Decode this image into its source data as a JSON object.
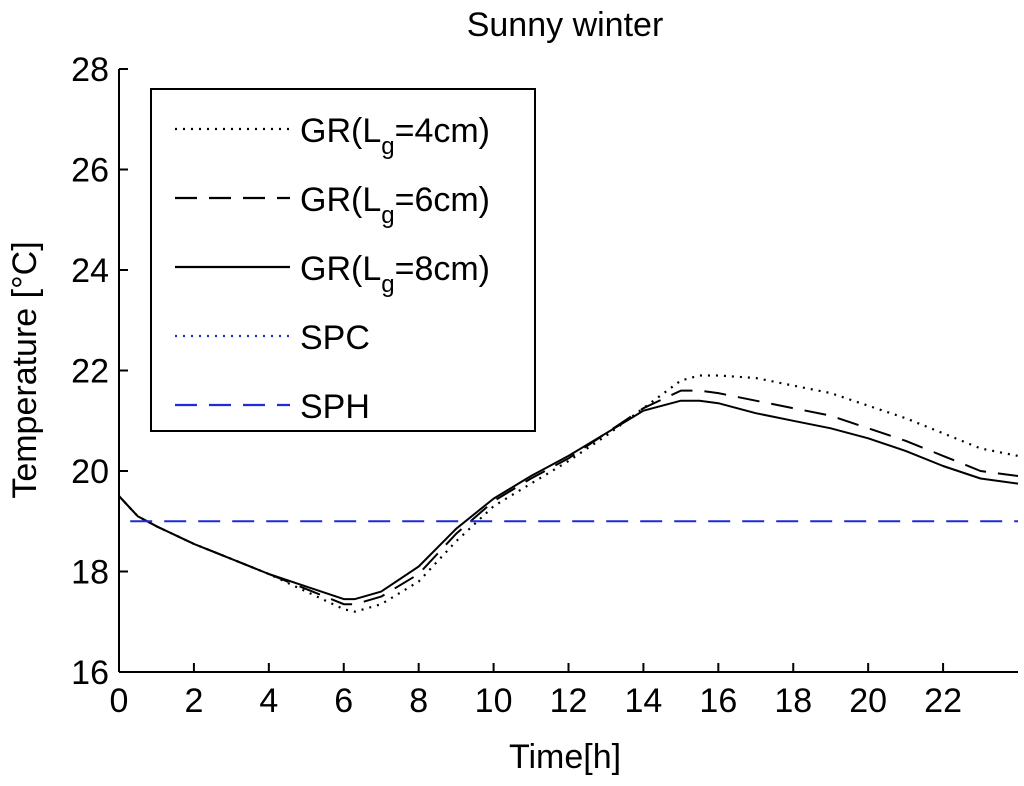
{
  "chart_data": {
    "type": "line",
    "title": "Sunny winter",
    "xlabel": "Time[h]",
    "ylabel": "Temperature [°C]",
    "xlim": [
      0,
      24
    ],
    "ylim": [
      16,
      28
    ],
    "xticks": [
      0,
      2,
      4,
      6,
      8,
      10,
      12,
      14,
      16,
      18,
      20,
      22
    ],
    "xtick_labels": [
      "0",
      "2",
      "4",
      "6",
      "8",
      "10",
      "12",
      "14",
      "16",
      "18",
      "20",
      "22"
    ],
    "yticks": [
      16,
      18,
      20,
      22,
      24,
      26,
      28
    ],
    "ytick_labels": [
      "16",
      "18",
      "20",
      "22",
      "24",
      "26",
      "28"
    ],
    "grid": false,
    "legend_position": "top-left",
    "series": [
      {
        "name": "GR(Lg=4cm)",
        "legend": {
          "prefix": "GR(L",
          "sub": "g",
          "suffix": "=4cm)"
        },
        "color": "#000000",
        "style": "dotted",
        "x": [
          0,
          0.5,
          1,
          2,
          3,
          4,
          5,
          6,
          6.3,
          7,
          8,
          9,
          10,
          11,
          12,
          13,
          14,
          15,
          15.5,
          16,
          17,
          18,
          19,
          20,
          21,
          22,
          23,
          24
        ],
        "y": [
          19.5,
          19.1,
          18.9,
          18.55,
          18.25,
          17.95,
          17.6,
          17.25,
          17.2,
          17.35,
          17.8,
          18.6,
          19.3,
          19.75,
          20.2,
          20.7,
          21.25,
          21.8,
          21.9,
          21.9,
          21.85,
          21.7,
          21.55,
          21.3,
          21.05,
          20.75,
          20.45,
          20.3
        ]
      },
      {
        "name": "GR(Lg=6cm)",
        "legend": {
          "prefix": "GR(L",
          "sub": "g",
          "suffix": "=6cm)"
        },
        "color": "#000000",
        "style": "dashed",
        "x": [
          0,
          0.5,
          1,
          2,
          3,
          4,
          5,
          6,
          6.3,
          7,
          8,
          9,
          10,
          11,
          12,
          13,
          14,
          15,
          15.5,
          16,
          17,
          18,
          19,
          20,
          21,
          22,
          23,
          24
        ],
        "y": [
          19.5,
          19.1,
          18.9,
          18.55,
          18.25,
          17.95,
          17.65,
          17.35,
          17.35,
          17.5,
          17.95,
          18.75,
          19.4,
          19.85,
          20.25,
          20.75,
          21.25,
          21.6,
          21.6,
          21.55,
          21.4,
          21.25,
          21.1,
          20.85,
          20.6,
          20.3,
          20.0,
          19.9
        ]
      },
      {
        "name": "GR(Lg=8cm)",
        "legend": {
          "prefix": "GR(L",
          "sub": "g",
          "suffix": "=8cm)"
        },
        "color": "#000000",
        "style": "solid",
        "x": [
          0,
          0.5,
          1,
          2,
          3,
          4,
          5,
          6,
          6.3,
          7,
          8,
          9,
          10,
          11,
          12,
          13,
          14,
          15,
          15.5,
          16,
          17,
          18,
          19,
          20,
          21,
          22,
          23,
          24
        ],
        "y": [
          19.5,
          19.1,
          18.9,
          18.55,
          18.25,
          17.95,
          17.7,
          17.45,
          17.45,
          17.6,
          18.1,
          18.85,
          19.45,
          19.9,
          20.3,
          20.75,
          21.2,
          21.4,
          21.4,
          21.35,
          21.15,
          21.0,
          20.85,
          20.65,
          20.4,
          20.1,
          19.85,
          19.75
        ]
      },
      {
        "name": "SPC",
        "legend": {
          "prefix": "SPC",
          "sub": "",
          "suffix": ""
        },
        "color": "#1f2ad8",
        "style": "dotted",
        "x": [],
        "y": []
      },
      {
        "name": "SPH",
        "legend": {
          "prefix": "SPH",
          "sub": "",
          "suffix": ""
        },
        "color": "#1f2ad8",
        "style": "dashed",
        "x": [
          0.3,
          24
        ],
        "y": [
          19,
          19
        ]
      }
    ]
  }
}
